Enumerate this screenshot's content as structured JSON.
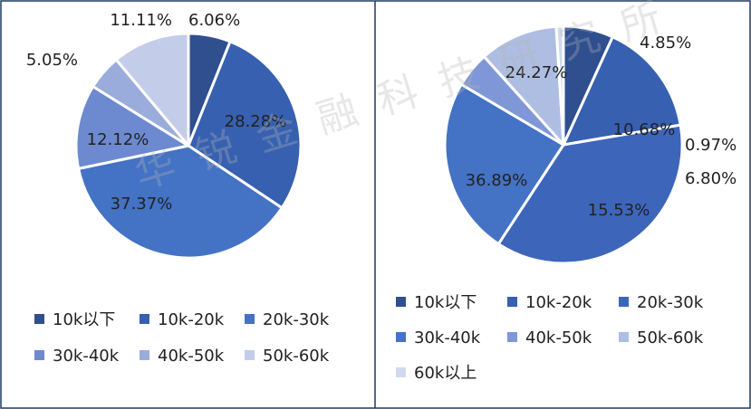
{
  "watermark": "华锐金融科技研究所",
  "chart_data": [
    {
      "type": "pie",
      "categories": [
        "10k以下",
        "10k-20k",
        "20k-30k",
        "30k-40k",
        "40k-50k",
        "50k-60k"
      ],
      "values": [
        6.06,
        28.28,
        37.37,
        12.12,
        5.05,
        11.11
      ],
      "data_labels": [
        "6.06%",
        "28.28%",
        "37.37%",
        "12.12%",
        "5.05%",
        "11.11%"
      ],
      "colors": [
        "#2f4f8f",
        "#3760b0",
        "#4472c4",
        "#6d8ad0",
        "#9aacdb",
        "#c3cde9"
      ],
      "legend_position": "bottom"
    },
    {
      "type": "pie",
      "categories": [
        "10k以下",
        "10k-20k",
        "20k-30k",
        "30k-40k",
        "40k-50k",
        "50k-60k",
        "60k以上"
      ],
      "values": [
        6.8,
        15.53,
        36.89,
        24.27,
        4.85,
        10.68,
        0.97
      ],
      "data_labels": [
        "6.80%",
        "15.53%",
        "36.89%",
        "24.27%",
        "4.85%",
        "10.68%",
        "0.97%"
      ],
      "colors": [
        "#2f4f8f",
        "#3760b0",
        "#3d66bb",
        "#4472c4",
        "#7f97d6",
        "#aebde2",
        "#d0d9ef"
      ],
      "legend_position": "bottom"
    }
  ]
}
